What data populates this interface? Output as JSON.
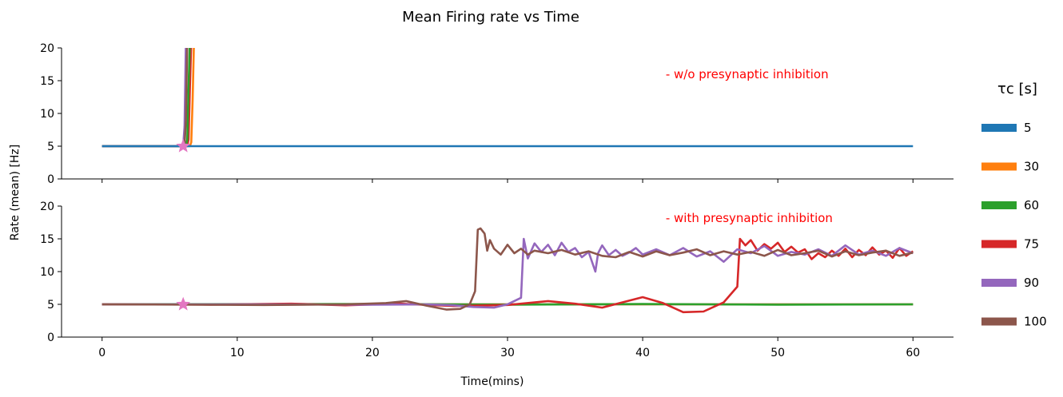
{
  "chart_data": {
    "type": "line",
    "title": "Mean Firing rate vs Time",
    "xlabel": "Time(mins)",
    "ylabel": "Rate (mean) [Hz]",
    "xlim": [
      -3,
      63
    ],
    "ylim": [
      0,
      20
    ],
    "x_ticks": [
      0,
      10,
      20,
      30,
      40,
      50,
      60
    ],
    "y_ticks": [
      0,
      5,
      10,
      15,
      20
    ],
    "legend": {
      "title": "τc [s]",
      "placement": "right",
      "entries": [
        {
          "label": "5",
          "color": "#1f77b4"
        },
        {
          "label": "30",
          "color": "#ff7f0e"
        },
        {
          "label": "60",
          "color": "#2ca02c"
        },
        {
          "label": "75",
          "color": "#d62728"
        },
        {
          "label": "90",
          "color": "#9467bd"
        },
        {
          "label": "100",
          "color": "#8c564b"
        }
      ]
    },
    "marker": {
      "x": 6,
      "y": 5,
      "shape": "star",
      "color": "#e377c2"
    },
    "panels": [
      {
        "annotation": "- w/o presynaptic inhibition",
        "annotation_color": "#ff0000",
        "series": [
          {
            "name": "30",
            "color": "#ff7f0e",
            "points": [
              [
                0,
                5
              ],
              [
                6.5,
                5
              ],
              [
                6.6,
                5.6
              ],
              [
                6.7,
                12
              ],
              [
                6.8,
                21
              ]
            ]
          },
          {
            "name": "75",
            "color": "#d62728",
            "points": [
              [
                0,
                5
              ],
              [
                6.3,
                5
              ],
              [
                6.4,
                6
              ],
              [
                6.5,
                14
              ],
              [
                6.6,
                21
              ]
            ]
          },
          {
            "name": "60",
            "color": "#2ca02c",
            "points": [
              [
                0,
                5
              ],
              [
                6.2,
                5
              ],
              [
                6.3,
                6
              ],
              [
                6.4,
                14
              ],
              [
                6.5,
                21
              ]
            ]
          },
          {
            "name": "90",
            "color": "#9467bd",
            "points": [
              [
                0,
                5
              ],
              [
                6.0,
                5
              ],
              [
                6.1,
                8
              ],
              [
                6.2,
                21
              ]
            ]
          },
          {
            "name": "100",
            "color": "#8c564b",
            "points": [
              [
                0,
                5
              ],
              [
                6.1,
                5
              ],
              [
                6.2,
                9
              ],
              [
                6.3,
                21
              ]
            ]
          },
          {
            "name": "5",
            "color": "#1f77b4",
            "points": [
              [
                0,
                5
              ],
              [
                60,
                5
              ]
            ]
          }
        ]
      },
      {
        "annotation": "- with presynaptic inhibition",
        "annotation_color": "#ff0000",
        "series": [
          {
            "name": "5",
            "color": "#1f77b4",
            "points": [
              [
                0,
                5
              ],
              [
                60,
                5
              ]
            ]
          },
          {
            "name": "30",
            "color": "#ff7f0e",
            "points": [
              [
                0,
                5
              ],
              [
                60,
                5
              ]
            ]
          },
          {
            "name": "60",
            "color": "#2ca02c",
            "points": [
              [
                0,
                5
              ],
              [
                20,
                5.05
              ],
              [
                30,
                4.95
              ],
              [
                40,
                5.05
              ],
              [
                50,
                4.95
              ],
              [
                60,
                5
              ]
            ]
          },
          {
            "name": "75",
            "color": "#d62728",
            "points": [
              [
                0,
                5
              ],
              [
                8,
                4.95
              ],
              [
                14,
                5.1
              ],
              [
                18,
                4.85
              ],
              [
                22,
                5.1
              ],
              [
                26,
                4.75
              ],
              [
                30,
                4.9
              ],
              [
                33,
                5.5
              ],
              [
                35,
                5.1
              ],
              [
                37,
                4.5
              ],
              [
                40,
                6.1
              ],
              [
                41.5,
                5.2
              ],
              [
                43,
                3.8
              ],
              [
                44.5,
                3.9
              ],
              [
                46,
                5.3
              ],
              [
                47,
                7.7
              ],
              [
                47.2,
                15
              ],
              [
                47.6,
                14
              ],
              [
                48,
                14.8
              ],
              [
                48.5,
                13.2
              ],
              [
                49,
                14.2
              ],
              [
                49.5,
                13.5
              ],
              [
                50,
                14.4
              ],
              [
                50.5,
                13
              ],
              [
                51,
                13.8
              ],
              [
                51.5,
                12.9
              ],
              [
                52,
                13.4
              ],
              [
                52.5,
                11.9
              ],
              [
                53,
                12.8
              ],
              [
                53.5,
                12.2
              ],
              [
                54,
                13.2
              ],
              [
                54.5,
                12.4
              ],
              [
                55,
                13.5
              ],
              [
                55.5,
                12.2
              ],
              [
                56,
                13.3
              ],
              [
                56.5,
                12.5
              ],
              [
                57,
                13.7
              ],
              [
                57.5,
                12.6
              ],
              [
                58,
                13.2
              ],
              [
                58.5,
                12.1
              ],
              [
                59,
                13.6
              ],
              [
                59.5,
                12.4
              ],
              [
                60,
                13.1
              ]
            ]
          },
          {
            "name": "90",
            "color": "#9467bd",
            "points": [
              [
                0,
                5
              ],
              [
                10,
                5
              ],
              [
                20,
                4.95
              ],
              [
                24,
                5
              ],
              [
                26,
                4.85
              ],
              [
                27.5,
                4.6
              ],
              [
                29,
                4.5
              ],
              [
                30,
                5
              ],
              [
                31,
                6
              ],
              [
                31.2,
                15
              ],
              [
                31.5,
                12
              ],
              [
                32,
                14.3
              ],
              [
                32.5,
                13
              ],
              [
                33,
                14.1
              ],
              [
                33.5,
                12.5
              ],
              [
                34,
                14.4
              ],
              [
                34.5,
                13
              ],
              [
                35,
                13.6
              ],
              [
                35.5,
                12.2
              ],
              [
                36,
                13
              ],
              [
                36.5,
                10
              ],
              [
                36.7,
                12.8
              ],
              [
                37,
                14
              ],
              [
                37.5,
                12.5
              ],
              [
                38,
                13.3
              ],
              [
                38.5,
                12.4
              ],
              [
                39,
                12.9
              ],
              [
                39.5,
                13.6
              ],
              [
                40,
                12.6
              ],
              [
                41,
                13.4
              ],
              [
                42,
                12.5
              ],
              [
                43,
                13.6
              ],
              [
                44,
                12.3
              ],
              [
                45,
                13.1
              ],
              [
                46,
                11.5
              ],
              [
                47,
                13.4
              ],
              [
                48,
                12.8
              ],
              [
                49,
                13.9
              ],
              [
                50,
                12.4
              ],
              [
                51,
                13
              ],
              [
                52,
                12.6
              ],
              [
                53,
                13.4
              ],
              [
                54,
                12.4
              ],
              [
                55,
                14
              ],
              [
                56,
                12.6
              ],
              [
                57,
                13.2
              ],
              [
                58,
                12.4
              ],
              [
                59,
                13.6
              ],
              [
                60,
                12.8
              ]
            ]
          },
          {
            "name": "100",
            "color": "#8c564b",
            "points": [
              [
                0,
                5
              ],
              [
                12,
                4.9
              ],
              [
                18,
                5
              ],
              [
                21,
                5.2
              ],
              [
                22.5,
                5.5
              ],
              [
                24,
                4.8
              ],
              [
                25.5,
                4.2
              ],
              [
                26.5,
                4.3
              ],
              [
                27.2,
                5
              ],
              [
                27.6,
                7
              ],
              [
                27.8,
                16.4
              ],
              [
                28,
                16.6
              ],
              [
                28.3,
                15.8
              ],
              [
                28.5,
                13.2
              ],
              [
                28.7,
                14.8
              ],
              [
                29,
                13.5
              ],
              [
                29.5,
                12.6
              ],
              [
                30,
                14.1
              ],
              [
                30.5,
                12.8
              ],
              [
                31,
                13.5
              ],
              [
                31.5,
                12.6
              ],
              [
                32,
                13.2
              ],
              [
                33,
                12.8
              ],
              [
                34,
                13.3
              ],
              [
                35,
                12.6
              ],
              [
                36,
                13.1
              ],
              [
                37,
                12.4
              ],
              [
                38,
                12.2
              ],
              [
                39,
                13
              ],
              [
                40,
                12.3
              ],
              [
                41,
                13.1
              ],
              [
                42,
                12.5
              ],
              [
                43,
                12.9
              ],
              [
                44,
                13.4
              ],
              [
                45,
                12.5
              ],
              [
                46,
                13.1
              ],
              [
                47,
                12.6
              ],
              [
                48,
                13
              ],
              [
                49,
                12.4
              ],
              [
                50,
                13.3
              ],
              [
                51,
                12.5
              ],
              [
                52,
                12.8
              ],
              [
                53,
                13.2
              ],
              [
                54,
                12.3
              ],
              [
                55,
                13.1
              ],
              [
                56,
                12.5
              ],
              [
                57,
                12.9
              ],
              [
                58,
                13.2
              ],
              [
                59,
                12.4
              ],
              [
                60,
                12.9
              ]
            ]
          }
        ]
      }
    ]
  }
}
